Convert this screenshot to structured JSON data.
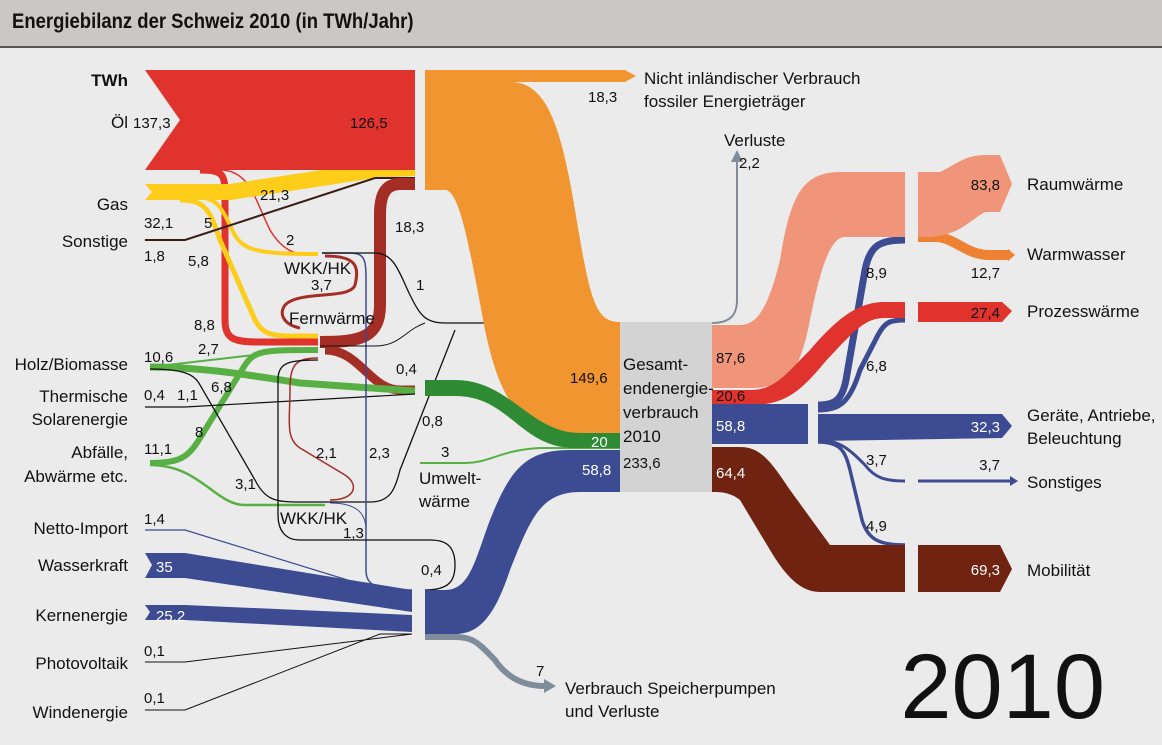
{
  "title": "Energiebilanz der Schweiz 2010 (in TWh/Jahr)",
  "unit_label": "TWh",
  "year_label": "2010",
  "colors": {
    "oel": "#e0332e",
    "gas": "#fecd1a",
    "fernwaerme": "#a42e26",
    "treibstoff": "#f0952f",
    "holz": "#58b044",
    "gruen_dunkel": "#2e8b34",
    "strom": "#3d4b92",
    "raumwaerme": "#f0957a",
    "warmwasser": "#ee8233",
    "mobilitaet": "#6f2310",
    "verluste": "#7f8c99",
    "gesamt": "#d3d3d3"
  },
  "sources": [
    {
      "name": "Öl",
      "value": "137,3"
    },
    {
      "name": "Gas",
      "value": "32,1"
    },
    {
      "name": "Sonstige",
      "value": "1,8"
    },
    {
      "name": "Holz/Biomasse",
      "value": "10,6"
    },
    {
      "name": "Thermische",
      "name2": "Solarenergie",
      "value": "0,4"
    },
    {
      "name": "Abfälle,",
      "name2": "Abwärme etc.",
      "value": "11,1"
    },
    {
      "name": "Netto-Import",
      "value": "1,4"
    },
    {
      "name": "Wasserkraft",
      "value": "35"
    },
    {
      "name": "Kernenergie",
      "value": "25,2"
    },
    {
      "name": "Photovoltaik",
      "value": "0,1"
    },
    {
      "name": "Windenergie",
      "value": "0,1"
    }
  ],
  "flow_labels": {
    "oel_main": "126,5",
    "gas_main": "21,3",
    "gas_wkk": "5",
    "gas_fern": "5,8",
    "oel_wkk": "2",
    "oel_fern": "8,8",
    "fern_main": "18,3",
    "wkk_fern": "3,7",
    "wkk_black": "1",
    "holz_fern": "2,7",
    "holz_1_1": "1,1",
    "abf_fern": "8",
    "holz_wkk": "6,8",
    "fern_green": "0,4",
    "abf_wkk": "3,1",
    "wkk2_fern": "2,1",
    "wkk_strom": "2,3",
    "solar_08": "0,8",
    "umwelt": "3",
    "wkk2_strom": "1,3",
    "strom_04": "0,4",
    "export": "18,3",
    "verluste_val": "2,2",
    "treibstoff_in": "149,6",
    "green_in": "20",
    "strom_in": "58,8",
    "total": "233,6",
    "out_raum": "87,6",
    "out_proz": "20,6",
    "out_strom": "58,8",
    "out_mob": "64,4",
    "s_raum": "8,9",
    "s_proz": "6,8",
    "s_sonst": "3,7",
    "s_mob": "4,9",
    "speicher": "7"
  },
  "nodes": {
    "wkk": "WKK/HK",
    "fernwaerme": "Fernwärme",
    "wkk2": "WKK/HK",
    "umwelt1": "Umwelt-",
    "umwelt2": "wärme",
    "gesamt": [
      "Gesamt-",
      "endenergie-",
      "verbrauch",
      "2010"
    ],
    "verluste": "Verluste"
  },
  "sinks": [
    {
      "name": "Nicht inländischer Verbrauch",
      "name2": "fossiler Energieträger"
    },
    {
      "name": "Raumwärme",
      "value": "83,8"
    },
    {
      "name": "Warmwasser",
      "value": "12,7"
    },
    {
      "name": "Prozesswärme",
      "value": "27,4"
    },
    {
      "name": "Geräte, Antriebe,",
      "name2": "Beleuchtung",
      "value": "32,3"
    },
    {
      "name": "Sonstiges",
      "value": "3,7"
    },
    {
      "name": "Mobilität",
      "value": "69,3"
    },
    {
      "name": "Verbrauch Speicherpumpen",
      "name2": "und Verluste"
    }
  ]
}
